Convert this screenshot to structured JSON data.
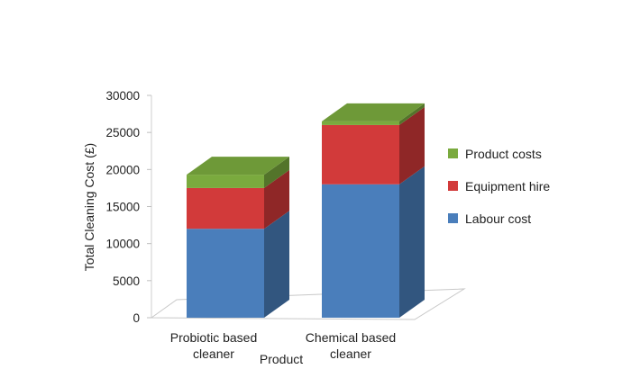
{
  "chart_data": {
    "type": "bar",
    "stacked": true,
    "three_d": true,
    "title": "",
    "xlabel": "Product",
    "ylabel": "Total Cleaning Cost (£)",
    "ylim": [
      0,
      30000
    ],
    "yticks": [
      0,
      5000,
      10000,
      15000,
      20000,
      25000,
      30000
    ],
    "categories": [
      [
        "Probiotic based",
        "cleaner"
      ],
      [
        "Chemical based",
        "cleaner"
      ]
    ],
    "series": [
      {
        "name": "Labour cost",
        "values": [
          12000,
          18000
        ],
        "color": "#4A7EBB"
      },
      {
        "name": "Equipment hire",
        "values": [
          5500,
          8000
        ],
        "color": "#D23A3A"
      },
      {
        "name": "Product costs",
        "values": [
          1800,
          500
        ],
        "color": "#7AAA3E"
      }
    ],
    "legend_position": "right",
    "grid": false
  }
}
